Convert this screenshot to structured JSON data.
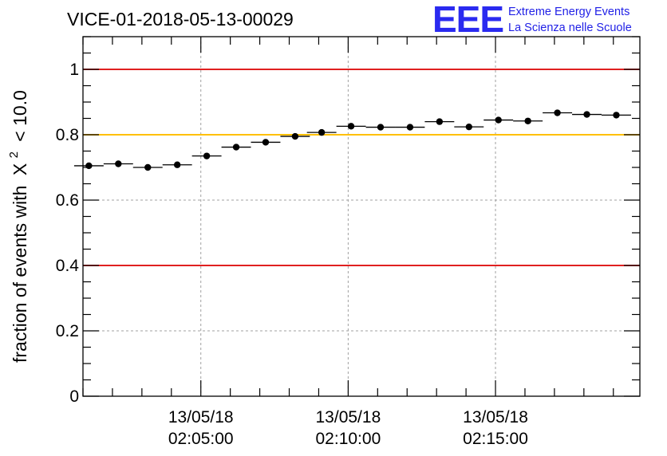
{
  "chart_data": {
    "type": "scatter",
    "title": "VICE-01-2018-05-13-00029",
    "xlabel": "",
    "ylabel_prefix": "fraction of events with",
    "ylabel_symbol": "X",
    "ylabel_superscript": "2",
    "ylabel_suffix": "< 10.0",
    "x_tick_labels": [
      {
        "date": "13/05/18",
        "time": "02:05:00",
        "x": 5
      },
      {
        "date": "13/05/18",
        "time": "02:10:00",
        "x": 10
      },
      {
        "date": "13/05/18",
        "time": "02:15:00",
        "x": 15
      }
    ],
    "x_unit": "minutes after 02:00:00",
    "xlim": [
      1.0,
      19.9
    ],
    "ylim": [
      0,
      1.1
    ],
    "y_ticks": [
      0,
      0.2,
      0.4,
      0.6,
      0.8,
      1
    ],
    "y_tick_labels": [
      "0",
      "0.2",
      "0.4",
      "0.6",
      "0.8",
      "1"
    ],
    "grid": true,
    "reference_lines": [
      {
        "y": 1.0,
        "color": "#e02020"
      },
      {
        "y": 0.8,
        "color": "#ffc000"
      },
      {
        "y": 0.4,
        "color": "#e02020"
      }
    ],
    "x": [
      1.2,
      2.2,
      3.2,
      4.2,
      5.2,
      6.2,
      7.2,
      8.2,
      9.1,
      10.1,
      11.1,
      12.1,
      13.1,
      14.1,
      15.1,
      16.1,
      17.1,
      18.1,
      19.1
    ],
    "x_halfwidth": 0.5,
    "values": [
      0.705,
      0.711,
      0.7,
      0.708,
      0.735,
      0.762,
      0.777,
      0.795,
      0.807,
      0.826,
      0.823,
      0.823,
      0.84,
      0.824,
      0.845,
      0.842,
      0.867,
      0.862,
      0.86
    ]
  },
  "logo": {
    "mark": "EEE",
    "line1": "Extreme Energy Events",
    "line2": "La Scienza nelle Scuole"
  }
}
